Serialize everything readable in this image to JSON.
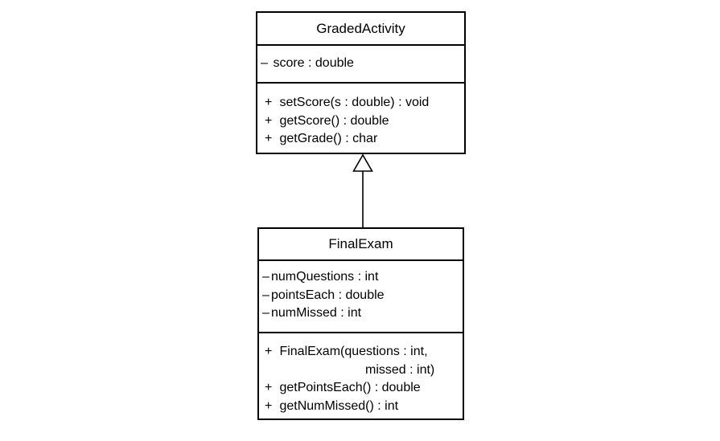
{
  "diagram": {
    "type": "UML class diagram",
    "relationships": [
      {
        "kind": "inheritance",
        "from": "FinalExam",
        "to": "GradedActivity"
      }
    ]
  },
  "classes": {
    "graded_activity": {
      "name": "GradedActivity",
      "attributes": [
        {
          "visibility": "–",
          "text": " score : double"
        }
      ],
      "operations": [
        {
          "visibility": "+",
          "text": " setScore(s : double) : void"
        },
        {
          "visibility": "+",
          "text": " getScore() : double"
        },
        {
          "visibility": "+",
          "text": " getGrade() : char"
        }
      ]
    },
    "final_exam": {
      "name": "FinalExam",
      "attributes": [
        {
          "visibility": "–",
          "text": "numQuestions : int"
        },
        {
          "visibility": "–",
          "text": "pointsEach : double"
        },
        {
          "visibility": "–",
          "text": "numMissed : int"
        }
      ],
      "operations": [
        {
          "visibility": "+",
          "text": " FinalExam(questions : int,"
        },
        {
          "continuation": "missed : int)"
        },
        {
          "visibility": "+",
          "text": " getPointsEach() : double"
        },
        {
          "visibility": "+",
          "text": " getNumMissed() : int"
        }
      ]
    }
  },
  "colors": {
    "line": "#000000",
    "background": "#ffffff"
  }
}
